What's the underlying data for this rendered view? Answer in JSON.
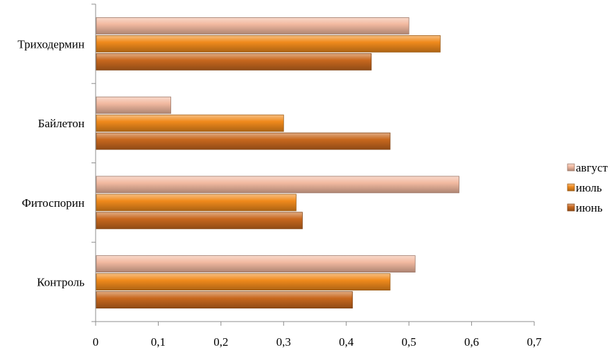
{
  "chart_data": {
    "type": "bar",
    "orientation": "horizontal",
    "categories": [
      "Контроль",
      "Фитоспорин",
      "Байлетон",
      "Триходермин"
    ],
    "series": [
      {
        "name": "июнь",
        "values": [
          0.41,
          0.33,
          0.47,
          0.44
        ],
        "color": "#c8681e"
      },
      {
        "name": "июль",
        "values": [
          0.47,
          0.32,
          0.3,
          0.55
        ],
        "color": "#f08a1c"
      },
      {
        "name": "август",
        "values": [
          0.51,
          0.58,
          0.12,
          0.5
        ],
        "color": "#f2b9a0"
      }
    ],
    "xlim": [
      0,
      0.7
    ],
    "xticks": [
      0,
      0.1,
      0.2,
      0.3,
      0.4,
      0.5,
      0.6,
      0.7
    ],
    "xtick_labels": [
      "0",
      "0,1",
      "0,2",
      "0,3",
      "0,4",
      "0,5",
      "0,6",
      "0,7"
    ],
    "legend_placement": "right",
    "legend_order": [
      "август",
      "июль",
      "июнь"
    ],
    "grid": false,
    "title": "",
    "xlabel": "",
    "ylabel": ""
  }
}
